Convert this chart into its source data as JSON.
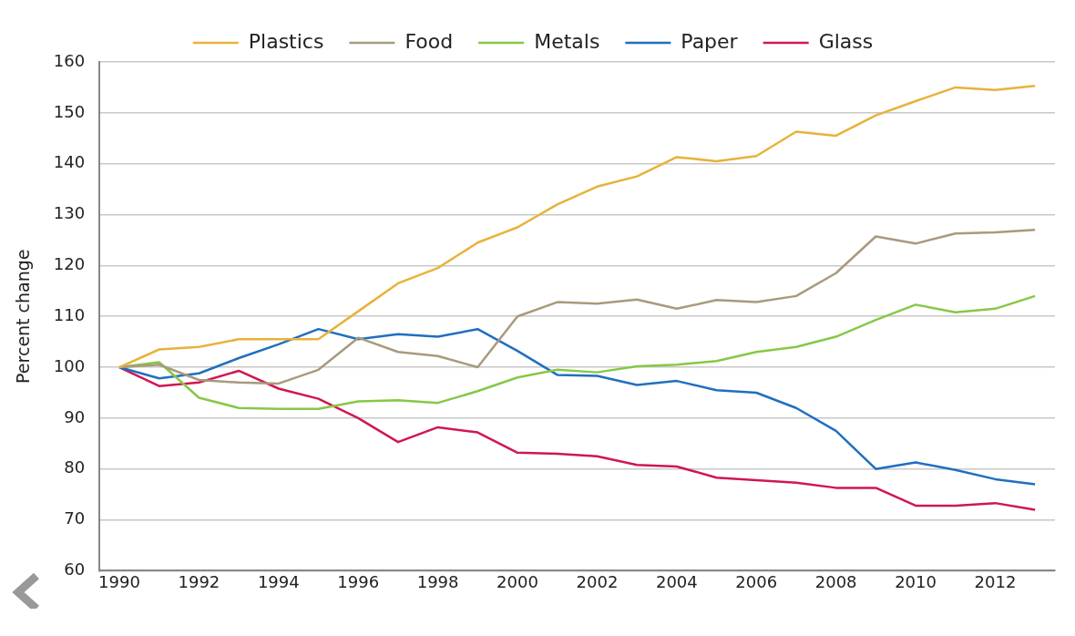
{
  "chart_data": {
    "type": "line",
    "ylabel": "Percent change",
    "x": [
      1990,
      1991,
      1992,
      1993,
      1994,
      1995,
      1996,
      1997,
      1998,
      1999,
      2000,
      2001,
      2002,
      2003,
      2004,
      2005,
      2006,
      2007,
      2008,
      2009,
      2010,
      2011,
      2012,
      2013
    ],
    "series": [
      {
        "name": "Plastics",
        "color": "#e8b23a",
        "values": [
          100,
          103.5,
          104,
          105.5,
          105.5,
          105.5,
          111,
          116.5,
          119.5,
          124.5,
          127.5,
          132,
          135.5,
          137.5,
          141.3,
          140.5,
          141.5,
          146.3,
          145.5,
          149.5,
          152.3,
          155,
          154.5,
          155.3
        ]
      },
      {
        "name": "Food",
        "color": "#a89a7c",
        "values": [
          100,
          100.5,
          97.5,
          97,
          96.8,
          99.5,
          105.8,
          103,
          102.2,
          100,
          110,
          112.8,
          112.5,
          113.3,
          111.5,
          113.2,
          112.8,
          114,
          118.5,
          125.7,
          124.3,
          126.3,
          126.5,
          127
        ]
      },
      {
        "name": "Metals",
        "color": "#86c846",
        "values": [
          100,
          101,
          94,
          92,
          91.8,
          91.8,
          93.3,
          93.5,
          93,
          95.3,
          98,
          99.5,
          99,
          100.2,
          100.5,
          101.2,
          103,
          104,
          106,
          109.3,
          112.3,
          110.8,
          111.5,
          114
        ]
      },
      {
        "name": "Paper",
        "color": "#1f6fc0",
        "values": [
          100,
          97.8,
          98.8,
          101.8,
          104.5,
          107.5,
          105.5,
          106.5,
          106,
          107.5,
          103.2,
          98.5,
          98.3,
          96.5,
          97.3,
          95.5,
          95,
          92,
          87.5,
          80,
          81.3,
          79.8,
          78,
          77
        ]
      },
      {
        "name": "Glass",
        "color": "#d0174f",
        "values": [
          100,
          96.3,
          97,
          99.3,
          95.8,
          93.8,
          90,
          85.3,
          88.2,
          87.2,
          83.2,
          83,
          82.5,
          80.8,
          80.5,
          78.3,
          77.8,
          77.3,
          76.3,
          76.3,
          72.8,
          72.8,
          73.3,
          72
        ]
      }
    ],
    "xlim": [
      1989.5,
      2013.5
    ],
    "xticks": [
      1990,
      1992,
      1994,
      1996,
      1998,
      2000,
      2002,
      2004,
      2006,
      2008,
      2010,
      2012
    ],
    "ylim": [
      60,
      160
    ],
    "yticks": [
      60,
      70,
      80,
      90,
      100,
      110,
      120,
      130,
      140,
      150,
      160
    ],
    "grid": "y",
    "legend": "top",
    "marker": "none",
    "line_style": "solid"
  }
}
